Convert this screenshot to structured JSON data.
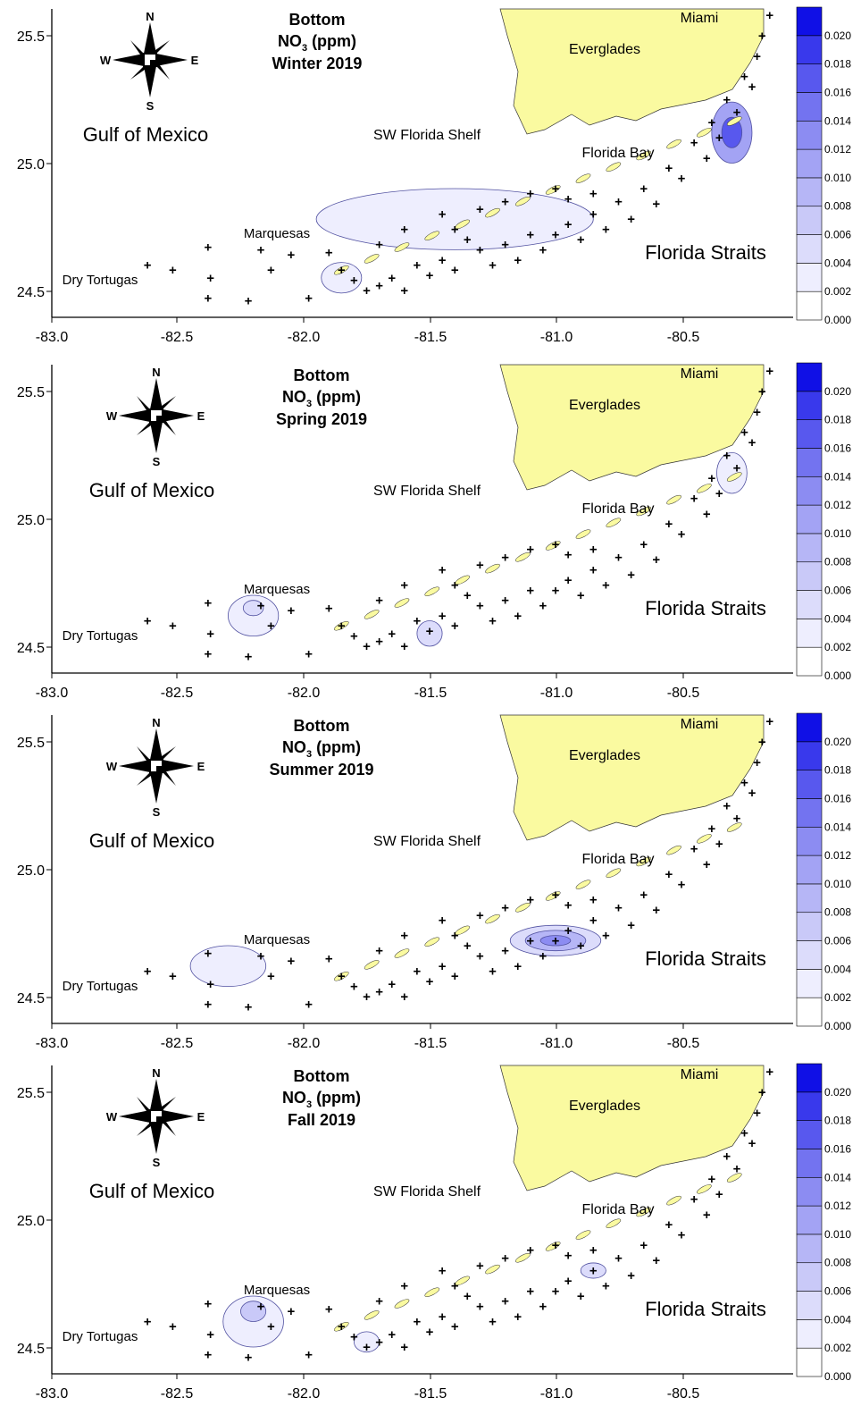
{
  "colorbar": {
    "ticks": [
      "0.000",
      "0.002",
      "0.004",
      "0.006",
      "0.008",
      "0.010",
      "0.012",
      "0.014",
      "0.016",
      "0.018",
      "0.020"
    ],
    "colors": [
      "#ffffff",
      "#eeeefe",
      "#dcdcfb",
      "#c9c9f8",
      "#b6b6f6",
      "#a3a3f4",
      "#8c8cf2",
      "#7373f0",
      "#5858ee",
      "#3939ec",
      "#1010e6"
    ]
  },
  "compass": {
    "n": "N",
    "s": "S",
    "e": "E",
    "w": "W"
  },
  "labels": {
    "gulf": "Gulf of Mexico",
    "shelf": "SW Florida Shelf",
    "bay": "Florida Bay",
    "straits": "Florida Straits",
    "everglades": "Everglades",
    "miami": "Miami",
    "marquesas": "Marquesas",
    "tortugas": "Dry Tortugas"
  },
  "axes": {
    "x_ticks": [
      "-83.0",
      "-82.5",
      "-82.0",
      "-81.5",
      "-81.0",
      "-80.5"
    ],
    "y_ticks": [
      "25.5",
      "25.0",
      "24.5"
    ]
  },
  "colors": {
    "land": "#fafaa0",
    "contour": "#5050a0"
  },
  "panels": [
    {
      "title_line1": "Bottom",
      "title_line2_prefix": "NO",
      "title_line2_sub": "3",
      "title_line2_suffix": " (ppm)",
      "season": "Winter 2019"
    },
    {
      "title_line1": "Bottom",
      "title_line2_prefix": "NO",
      "title_line2_sub": "3",
      "title_line2_suffix": " (ppm)",
      "season": "Spring 2019"
    },
    {
      "title_line1": "Bottom",
      "title_line2_prefix": "NO",
      "title_line2_sub": "3",
      "title_line2_suffix": " (ppm)",
      "season": "Summer 2019"
    },
    {
      "title_line1": "Bottom",
      "title_line2_prefix": "NO",
      "title_line2_sub": "3",
      "title_line2_suffix": " (ppm)",
      "season": "Fall 2019"
    }
  ]
}
